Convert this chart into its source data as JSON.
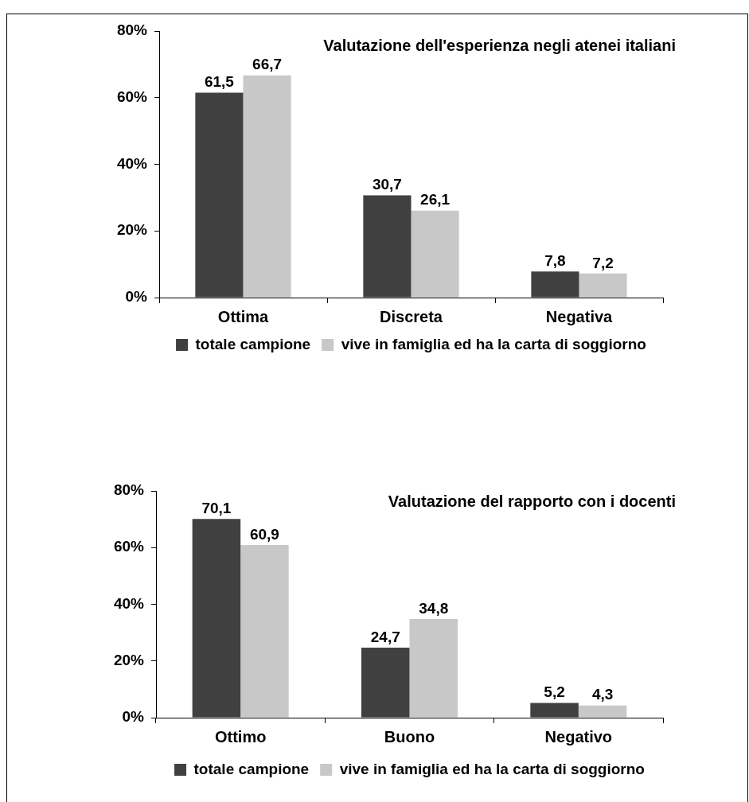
{
  "chart_data": [
    {
      "type": "bar",
      "title": "Valutazione dell'esperienza negli atenei italiani",
      "categories": [
        "Ottima",
        "Discreta",
        "Negativa"
      ],
      "series": [
        {
          "name": "totale campione",
          "color": "#404040",
          "values": [
            61.5,
            30.7,
            7.8
          ],
          "value_labels": [
            "61,5",
            "30,7",
            "7,8"
          ]
        },
        {
          "name": "vive in famiglia ed ha la carta di soggiorno",
          "color": "#c8c8c8",
          "values": [
            66.7,
            26.1,
            7.2
          ],
          "value_labels": [
            "66,7",
            "26,1",
            "7,2"
          ]
        }
      ],
      "ylim": [
        0,
        80
      ],
      "yticks": [
        {
          "value": 0,
          "label": "0%"
        },
        {
          "value": 20,
          "label": "20%"
        },
        {
          "value": 40,
          "label": "40%"
        },
        {
          "value": 60,
          "label": "60%"
        },
        {
          "value": 80,
          "label": "80%"
        }
      ],
      "legend": "bottom"
    },
    {
      "type": "bar",
      "title": "Valutazione del rapporto con i docenti",
      "categories": [
        "Ottimo",
        "Buono",
        "Negativo"
      ],
      "series": [
        {
          "name": "totale campione",
          "color": "#404040",
          "values": [
            70.1,
            24.7,
            5.2
          ],
          "value_labels": [
            "70,1",
            "24,7",
            "5,2"
          ]
        },
        {
          "name": "vive in famiglia ed ha la carta di soggiorno",
          "color": "#c8c8c8",
          "values": [
            60.9,
            34.8,
            4.3
          ],
          "value_labels": [
            "60,9",
            "34,8",
            "4,3"
          ]
        }
      ],
      "ylim": [
        0,
        80
      ],
      "yticks": [
        {
          "value": 0,
          "label": "0%"
        },
        {
          "value": 20,
          "label": "20%"
        },
        {
          "value": 40,
          "label": "40%"
        },
        {
          "value": 60,
          "label": "60%"
        },
        {
          "value": 80,
          "label": "80%"
        }
      ],
      "legend": "bottom"
    }
  ]
}
